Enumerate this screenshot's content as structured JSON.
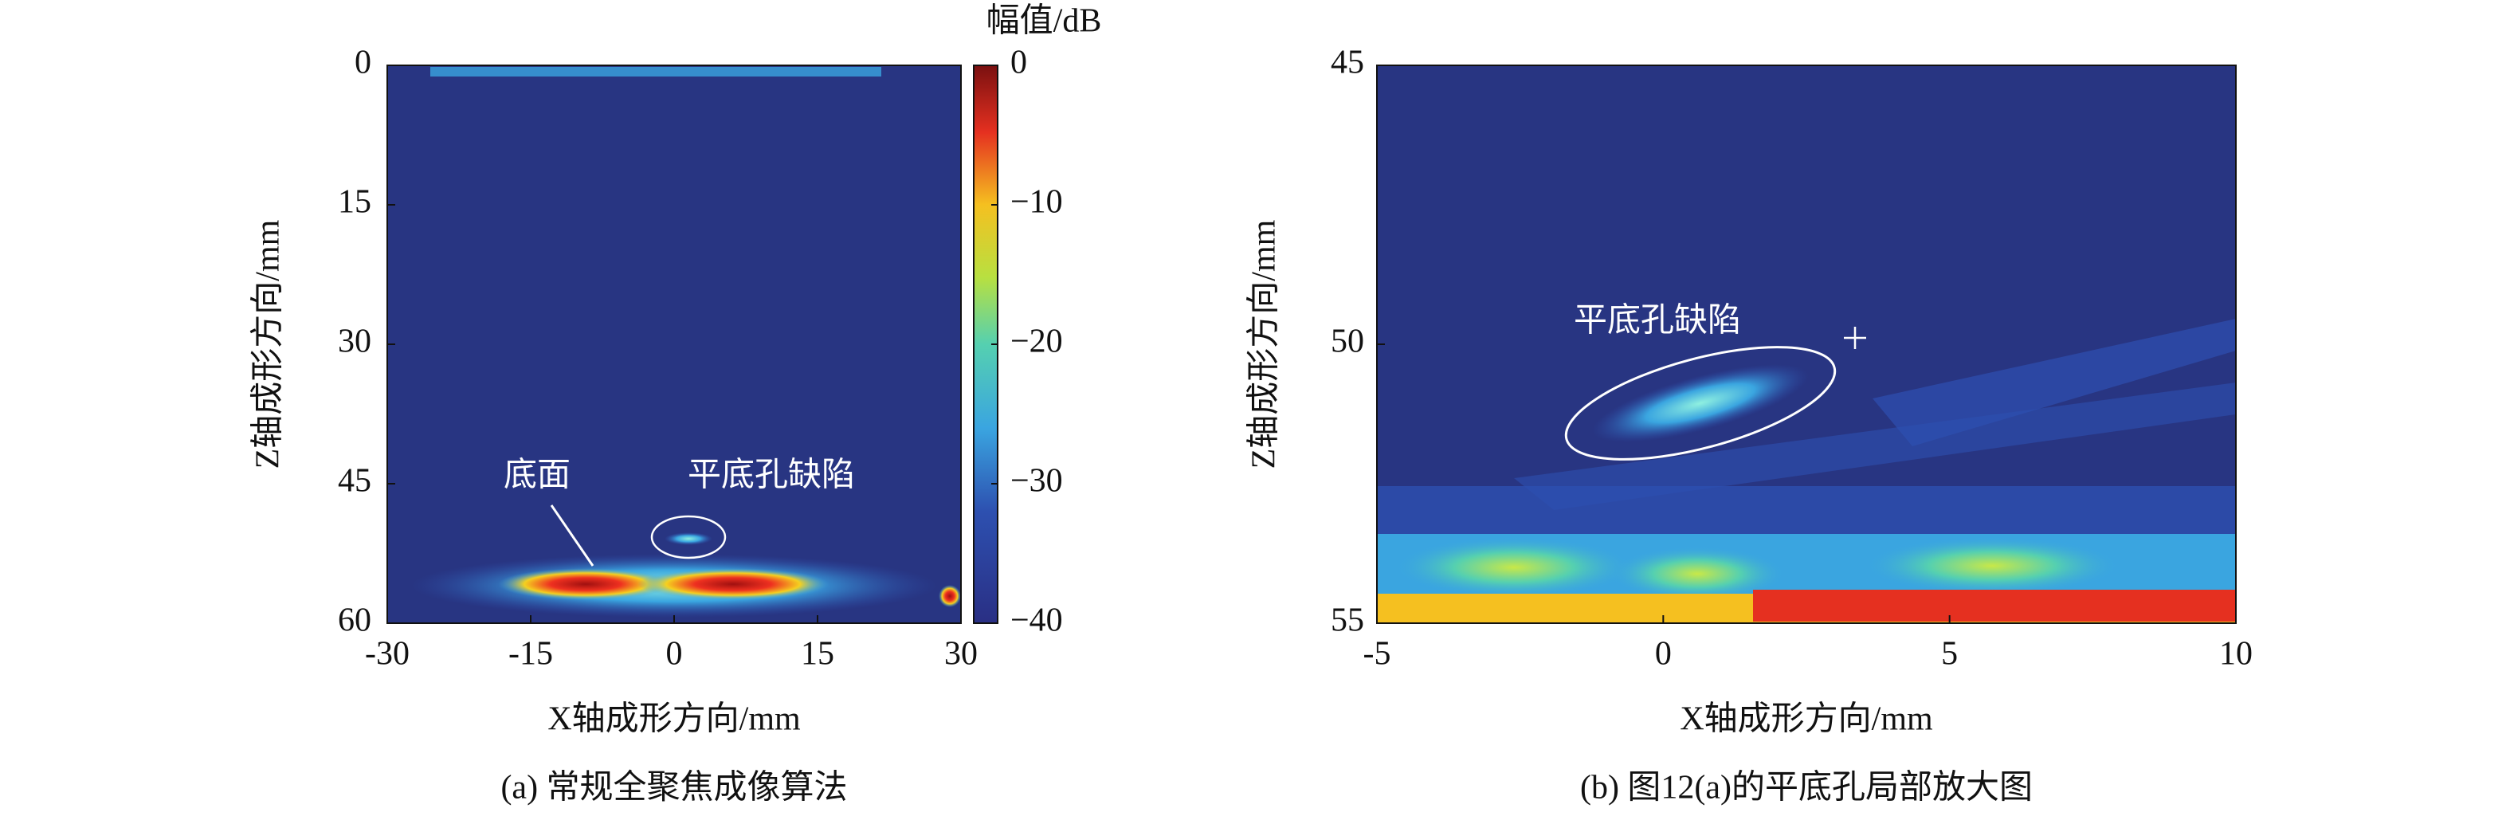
{
  "chart_data": [
    {
      "type": "heatmap",
      "caption": "(a) 常规全聚焦成像算法",
      "x_label": "X轴成形方向/mm",
      "y_label": "Z轴成形方向/mm",
      "xlim": [
        -30,
        30
      ],
      "xticks": [
        -30,
        -15,
        0,
        15,
        30
      ],
      "ylim": [
        0,
        60
      ],
      "yticks": [
        0,
        15,
        30,
        45,
        60
      ],
      "y_reversed": true,
      "annotations": [
        "底面",
        "平底孔缺陷"
      ],
      "colorbar": {
        "label": "幅值/dB",
        "lim": [
          -40,
          0
        ],
        "ticks": [
          0,
          {
            "value": -10,
            "label": "−10"
          },
          {
            "value": -20,
            "label": "−20"
          },
          {
            "value": -30,
            "label": "−30"
          },
          {
            "value": -40,
            "label": "−40"
          }
        ]
      }
    },
    {
      "type": "heatmap",
      "caption": "(b) 图12(a)的平底孔局部放大图",
      "x_label": "X轴成形方向/mm",
      "y_label": "Z轴成形方向/mm",
      "xlim": [
        -5,
        10
      ],
      "xticks": [
        -5,
        0,
        5,
        10
      ],
      "ylim": [
        45,
        55
      ],
      "yticks": [
        45,
        50,
        55
      ],
      "y_reversed": true,
      "annotations": [
        "平底孔缺陷"
      ]
    }
  ]
}
